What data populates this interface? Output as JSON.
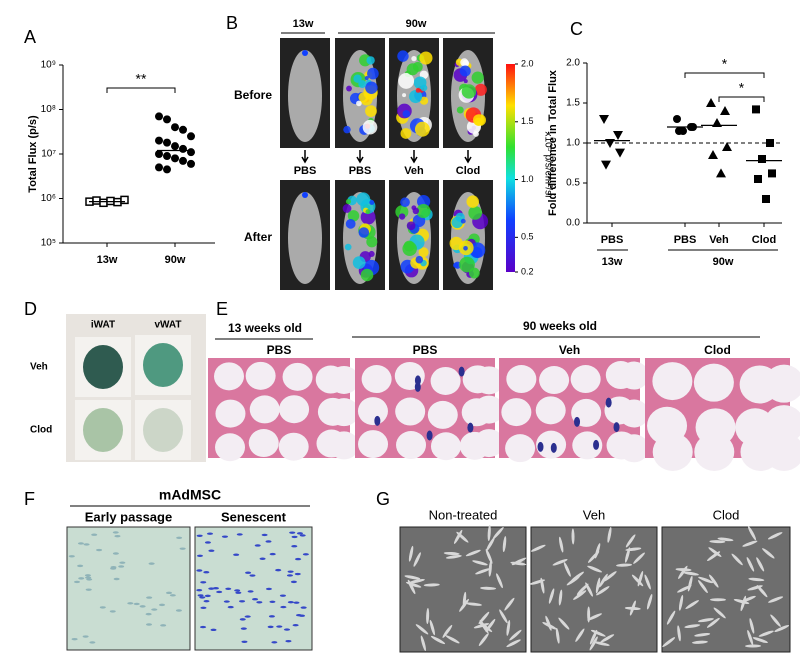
{
  "panel_labels": [
    "A",
    "B",
    "C",
    "D",
    "E",
    "F",
    "G"
  ],
  "chart_data": [
    {
      "type": "strip",
      "ylabel": "Total Flux  (p/s)",
      "log_scale": true,
      "color": "#000000",
      "categories": [
        "13w",
        "90w"
      ],
      "markers": [
        "open-square",
        "circle"
      ],
      "values": [
        [
          850000,
          900000,
          800000,
          880000,
          830000,
          930000
        ],
        [
          70000000,
          60000000,
          40000000,
          35000000,
          25000000,
          20000000,
          18000000,
          15000000,
          13000000,
          11000000,
          10000000,
          9000000,
          8000000,
          7000000,
          6000000,
          5000000,
          4500000
        ]
      ],
      "medians": [
        850000,
        12000000
      ],
      "ylim": [
        100000,
        1000000000
      ],
      "yticks": [
        {
          "value": 100000,
          "label": "10⁵"
        },
        {
          "value": 1000000,
          "label": "10⁶"
        },
        {
          "value": 10000000,
          "label": "10⁷"
        },
        {
          "value": 100000000,
          "label": "10⁸"
        },
        {
          "value": 1000000000,
          "label": "10⁹"
        }
      ],
      "annotations": [
        "**"
      ]
    },
    {
      "type": "strip",
      "ylabel": "Fold difference in Total Flux",
      "color": "#000000",
      "categories": [
        "PBS",
        "PBS",
        "Veh",
        "Clod"
      ],
      "groups": [
        "13w",
        "90w"
      ],
      "markers": [
        "triangle-down",
        "circle",
        "triangle-up",
        "square"
      ],
      "values": [
        [
          1.3,
          1.1,
          1.0,
          0.88,
          0.73
        ],
        [
          1.3,
          1.2,
          1.15,
          1.2,
          1.15
        ],
        [
          1.5,
          1.4,
          1.25,
          0.95,
          0.85,
          0.62
        ],
        [
          1.42,
          1.0,
          0.8,
          0.62,
          0.55,
          0.3
        ]
      ],
      "means": [
        1.03,
        1.2,
        1.22,
        0.78
      ],
      "reference_line": 1,
      "ylim": [
        0,
        2
      ],
      "yticks": [
        {
          "value": 0,
          "label": "0.0"
        },
        0.5,
        {
          "value": 1,
          "label": "1.0"
        },
        1.5,
        {
          "value": 2,
          "label": "2.0"
        }
      ],
      "annotations": [
        "*",
        "*"
      ]
    }
  ],
  "panel_b": {
    "ages": [
      "13w",
      "90w"
    ],
    "rows": [
      "Before",
      "After"
    ],
    "treatments": [
      "PBS",
      "PBS",
      "Veh",
      "Clod"
    ],
    "colorbar": {
      "label": "x10⁵ p/s/cm²/sr",
      "lim": [
        0.2,
        2
      ],
      "ticks": [
        0.2,
        0.5,
        {
          "value": 1,
          "label": "1.0"
        },
        1.5,
        {
          "value": 2,
          "label": "2.0"
        }
      ]
    }
  },
  "panel_d": {
    "columns": [
      "iWAT",
      "vWAT"
    ],
    "rows": [
      "Veh",
      "Clod"
    ]
  },
  "panel_e": {
    "groups": [
      "13 weeks old",
      "90 weeks old"
    ],
    "columns": [
      "PBS",
      "PBS",
      "Veh",
      "Clod"
    ]
  },
  "panel_f": {
    "title": "mAdMSC",
    "columns": [
      "Early passage",
      "Senescent"
    ]
  },
  "panel_g": {
    "columns": [
      "Non-treated",
      "Veh",
      "Clod"
    ]
  }
}
